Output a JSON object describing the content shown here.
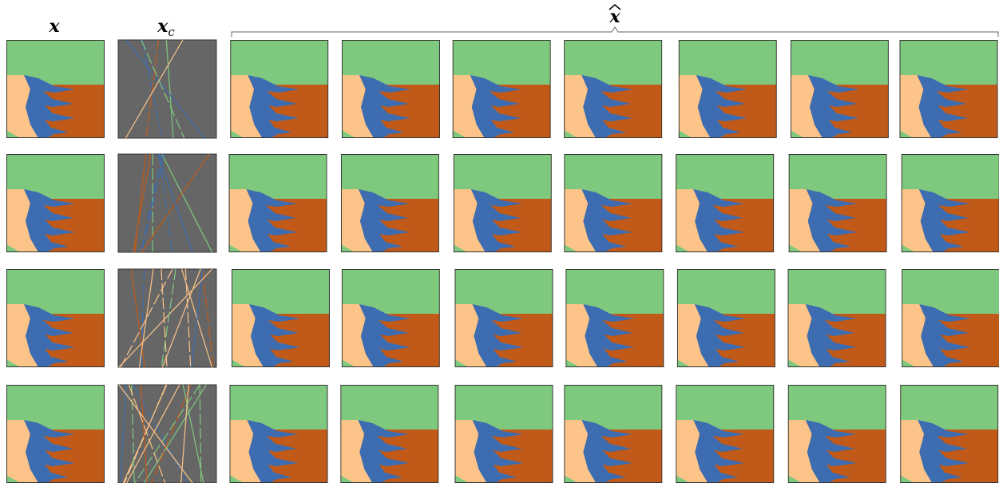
{
  "header": {
    "original": "x",
    "sampled": {
      "base": "x",
      "sub": "c"
    },
    "generated": "x"
  }
}
